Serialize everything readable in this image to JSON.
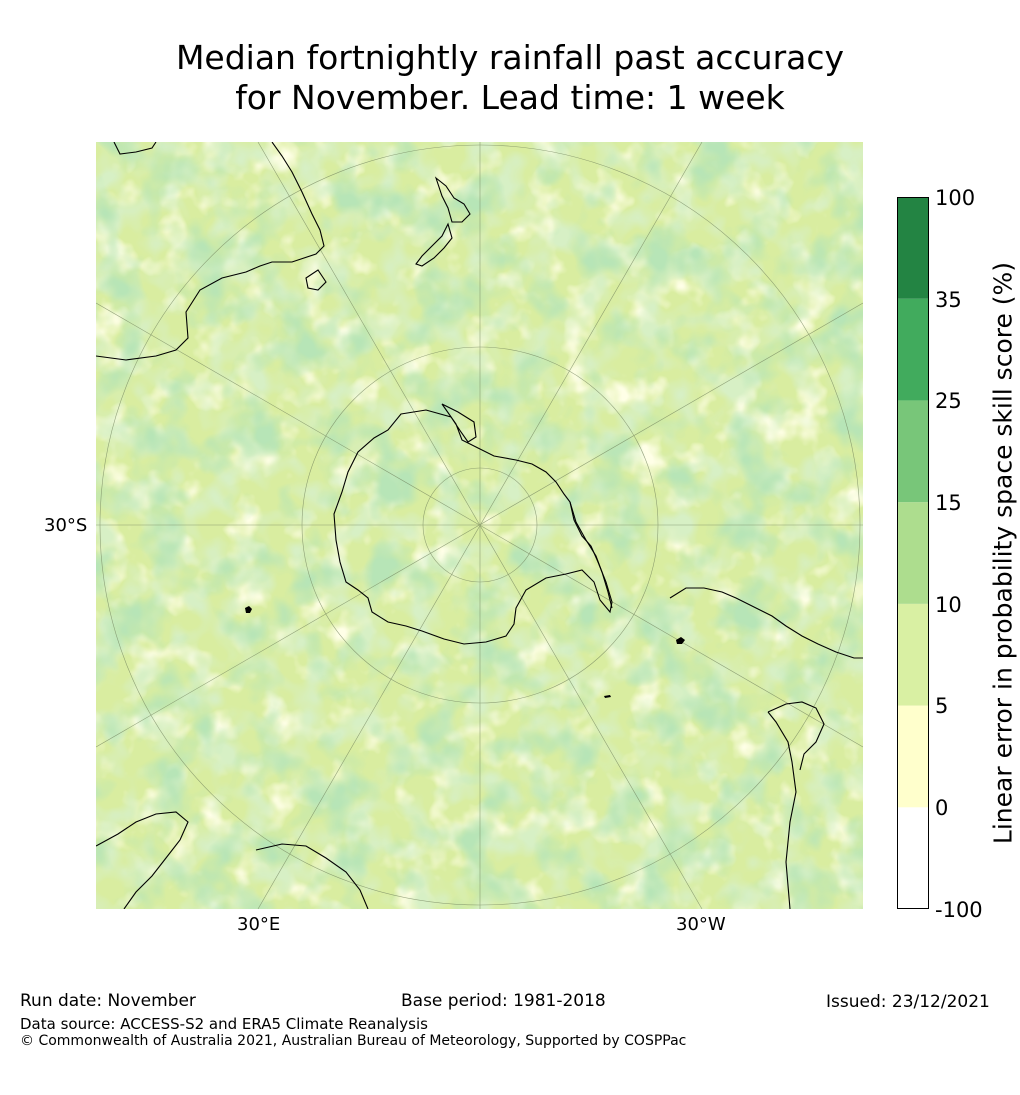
{
  "title_line1": "Median fortnightly rainfall past accuracy",
  "title_line2": "for November. Lead time: 1 week",
  "map": {
    "projection": "south-polar-stereographic",
    "lat_label": "30°S",
    "lon_labels": [
      "30°E",
      "30°W"
    ],
    "ocean_base_color": "#d9eda0"
  },
  "colorbar": {
    "label": "Linear error in probability space skill score (%)",
    "ticks": [
      "100",
      "35",
      "25",
      "15",
      "10",
      "5",
      "0",
      "-100"
    ],
    "bins": [
      {
        "range": "-100 to 0",
        "color": "#ffffff"
      },
      {
        "range": "0 to 5",
        "color": "#ffffcc"
      },
      {
        "range": "5 to 10",
        "color": "#d9f0a3"
      },
      {
        "range": "10 to 15",
        "color": "#addd8e"
      },
      {
        "range": "15 to 25",
        "color": "#78c679"
      },
      {
        "range": "25 to 35",
        "color": "#41ab5d"
      },
      {
        "range": "35 to 100",
        "color": "#238443"
      }
    ]
  },
  "footer": {
    "run_date": "Run date: November",
    "base_period": "Base period: 1981-2018",
    "issued": "Issued: 23/12/2021",
    "data_source": "Data source: ACCESS-S2 and ERA5 Climate Reanalysis",
    "copyright": "© Commonwealth of Australia 2021, Australian Bureau of Meteorology, Supported by COSPPac"
  }
}
